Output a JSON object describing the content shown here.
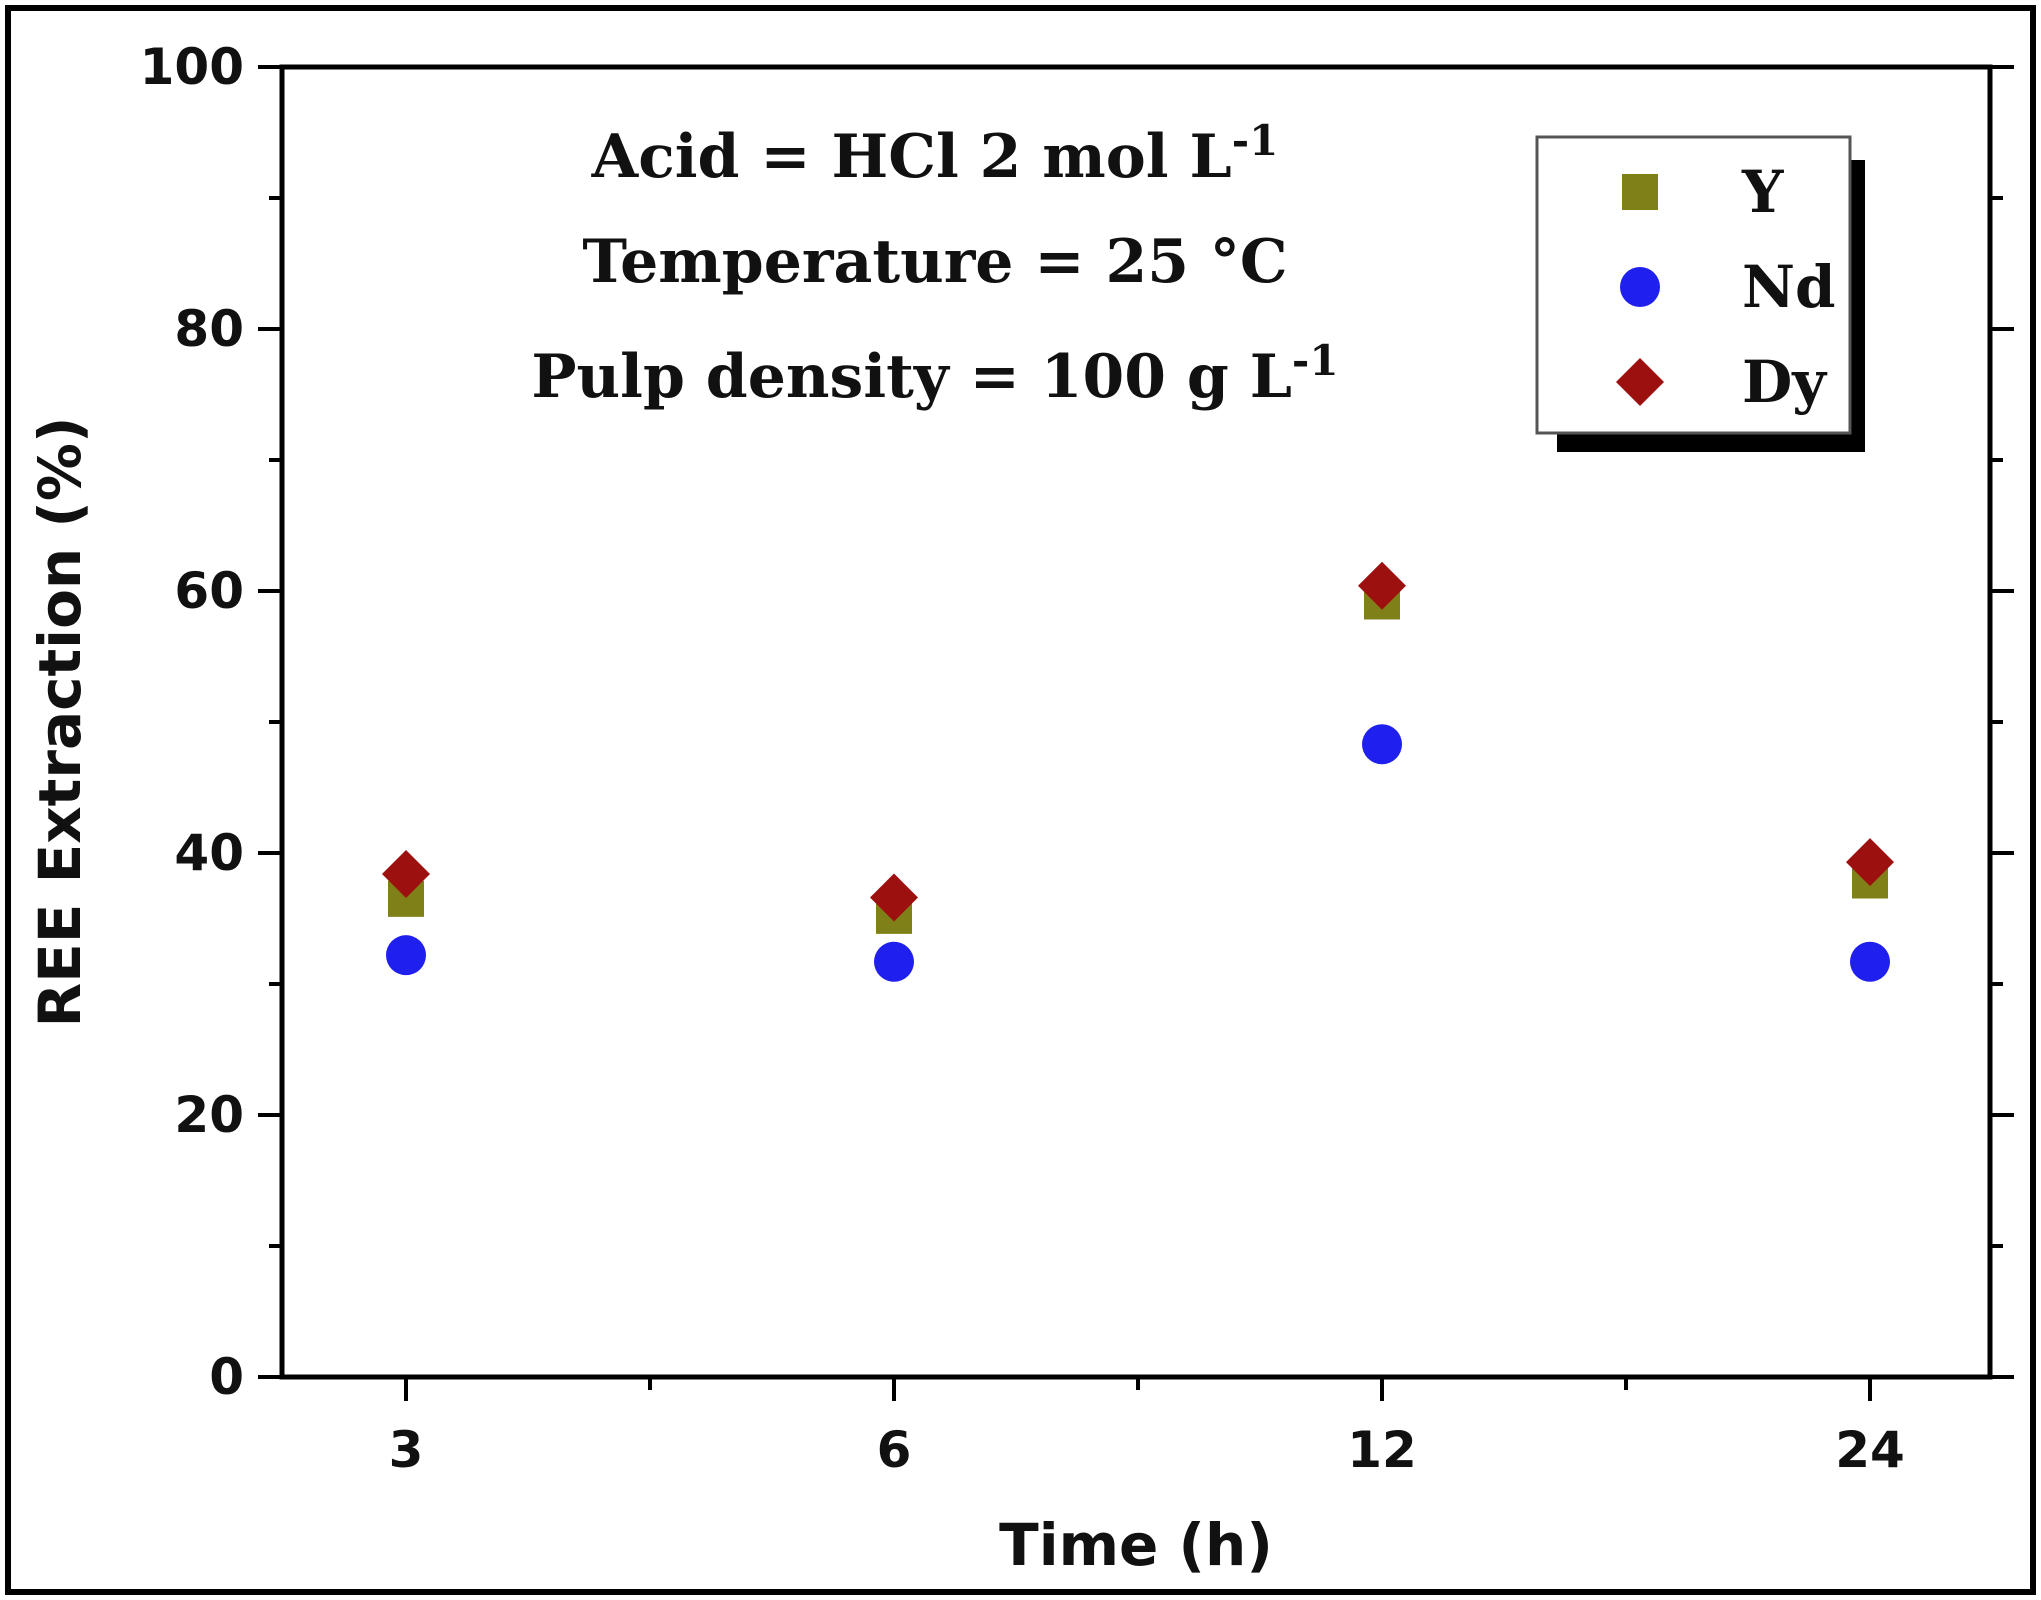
{
  "chart_data": {
    "type": "scatter",
    "title": "",
    "xlabel": "Time (h)",
    "ylabel": "REE Extraction (%)",
    "categories": [
      "3",
      "6",
      "12",
      "24"
    ],
    "ylim": [
      0,
      100
    ],
    "yticks": [
      0,
      20,
      40,
      60,
      80,
      100
    ],
    "series": [
      {
        "name": "Y",
        "marker": "square",
        "color": "#808018",
        "values": [
          36.5,
          35.2,
          59.2,
          37.9
        ]
      },
      {
        "name": "Nd",
        "marker": "circle",
        "color": "#2020ee",
        "values": [
          32.2,
          31.7,
          48.3,
          31.7
        ]
      },
      {
        "name": "Dy",
        "marker": "diamond",
        "color": "#9c1010",
        "values": [
          38.4,
          36.6,
          60.4,
          39.3
        ]
      }
    ],
    "annotations": [
      {
        "text": "Acid = HCl 2 mol L",
        "sup": "-1"
      },
      {
        "text": "Temperature = 25 °C",
        "sup": ""
      },
      {
        "text": "Pulp density = 100 g L",
        "sup": "-1"
      }
    ],
    "legend_position": "top-right"
  }
}
